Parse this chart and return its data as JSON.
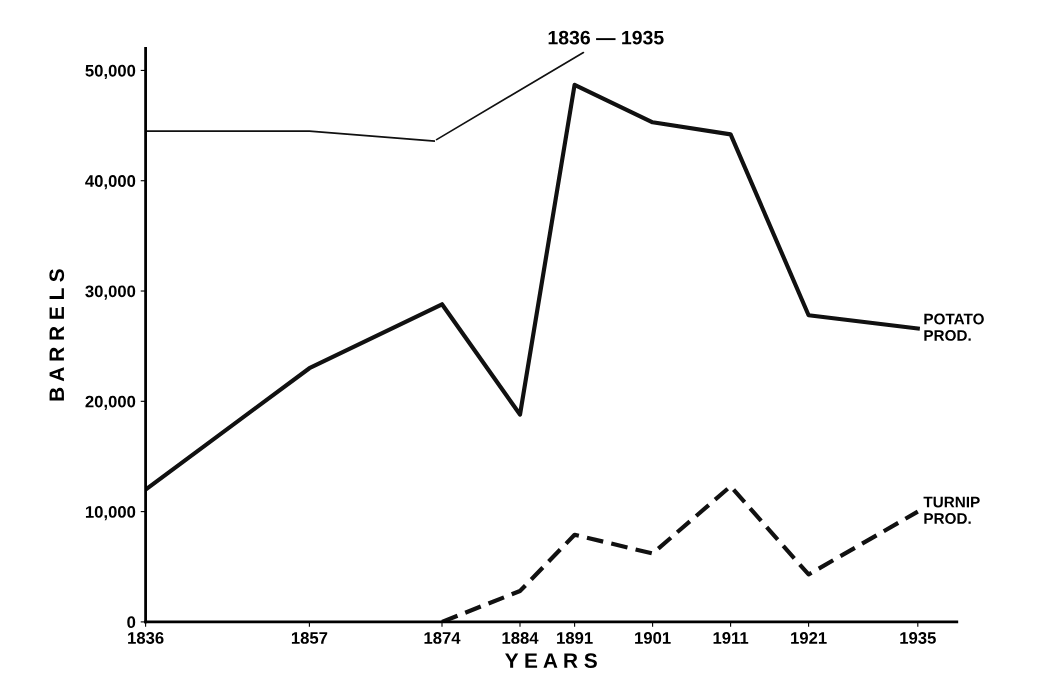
{
  "chart_data": {
    "type": "line",
    "xlabel": "Y E A R S",
    "ylabel": "B A R R E L S",
    "xlim": [
      1836,
      1940
    ],
    "ylim": [
      0,
      52000
    ],
    "xticks": [
      1836,
      1857,
      1874,
      1884,
      1891,
      1901,
      1911,
      1921,
      1935
    ],
    "yticks": [
      {
        "value": 0,
        "label": "0"
      },
      {
        "value": 10000,
        "label": "10,000"
      },
      {
        "value": 20000,
        "label": "20,000"
      },
      {
        "value": 30000,
        "label": "30,000"
      },
      {
        "value": 40000,
        "label": "40,000"
      },
      {
        "value": 50000,
        "label": "50,000"
      }
    ],
    "grid": false,
    "legend": false,
    "marker": "none",
    "annotations": [
      {
        "text": "1836 — 1935",
        "x": 1873,
        "y": 43600
      }
    ],
    "series": [
      {
        "name": "POTATO\nPROD.",
        "color": "#111111",
        "line_style": "solid",
        "x": [
          1836,
          1857,
          1874,
          1884,
          1891,
          1901,
          1911,
          1921,
          1935
        ],
        "values": [
          12000,
          23000,
          28800,
          18800,
          48700,
          45300,
          44200,
          27800,
          26600
        ]
      },
      {
        "name": "TURNIP\nPROD.",
        "color": "#111111",
        "line_style": "dashed",
        "x": [
          1874,
          1884,
          1891,
          1901,
          1911,
          1921,
          1935
        ],
        "values": [
          0,
          2800,
          7900,
          6200,
          12300,
          4300,
          10000
        ]
      },
      {
        "color": "#111111",
        "line_style": "solid",
        "x": [
          1836,
          1857,
          1873
        ],
        "values": [
          44500,
          44500,
          43600
        ]
      }
    ]
  }
}
